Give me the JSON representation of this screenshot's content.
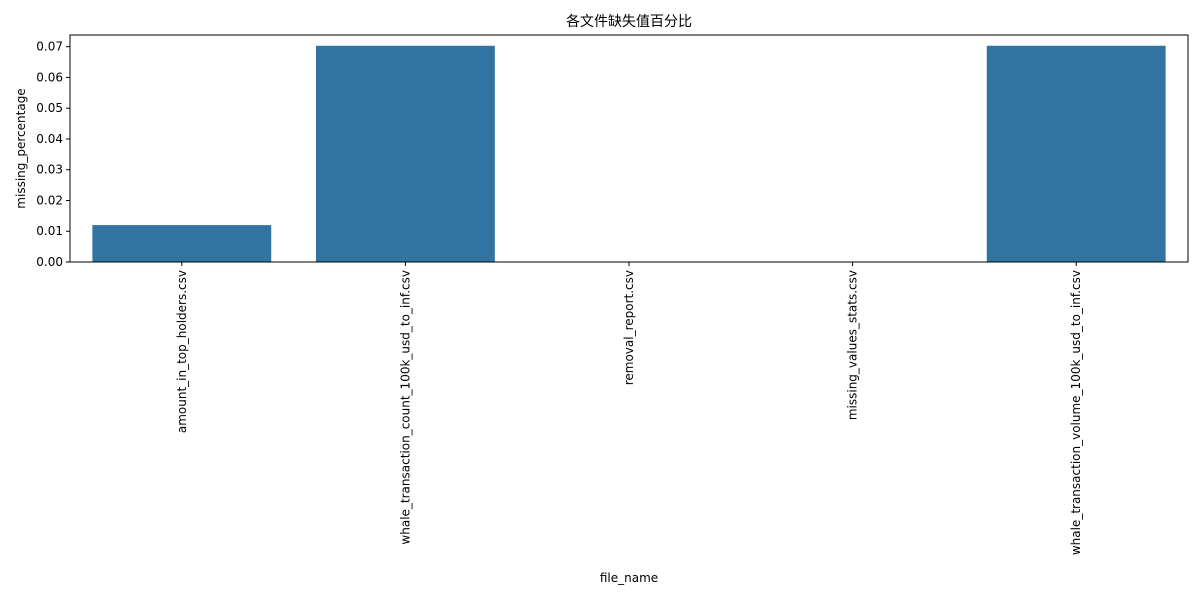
{
  "chart_data": {
    "type": "bar",
    "title": "各文件缺失值百分比",
    "xlabel": "file_name",
    "ylabel": "missing_percentage",
    "categories": [
      "amount_in_top_holders.csv",
      "whale_transaction_count_100k_usd_to_inf.csv",
      "removal_report.csv",
      "missing_values_stats.csv",
      "whale_transaction_volume_100k_usd_to_inf.csv"
    ],
    "values": [
      0.012,
      0.0703,
      0.0,
      0.0,
      0.0703
    ],
    "ylim": [
      0,
      0.0738
    ],
    "yticks": [
      0.0,
      0.01,
      0.02,
      0.03,
      0.04,
      0.05,
      0.06,
      0.07
    ],
    "ytick_labels": [
      "0.00",
      "0.01",
      "0.02",
      "0.03",
      "0.04",
      "0.05",
      "0.06",
      "0.07"
    ],
    "bar_color": "#3274a1",
    "grid": false,
    "legend": "none"
  }
}
